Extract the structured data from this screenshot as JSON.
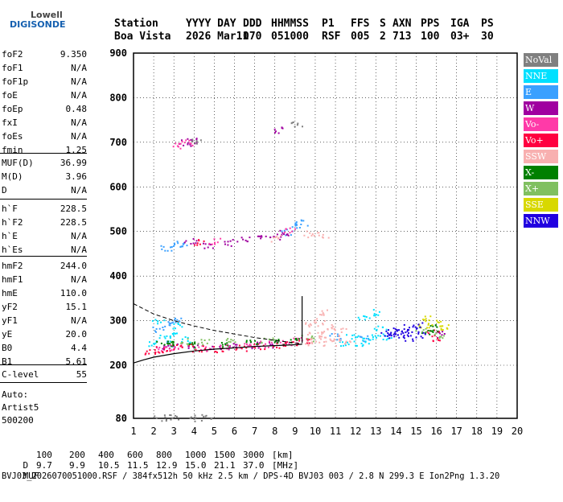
{
  "logo": {
    "line1": "Lowell",
    "line2": "DIGISONDE"
  },
  "header": {
    "columns": [
      {
        "label": "Station",
        "value": "Boa Vista"
      },
      {
        "label": "YYYY DAY",
        "value": "2026 Mar11"
      },
      {
        "label": "DDD",
        "value": "070"
      },
      {
        "label": "HHMMSS",
        "value": "051000"
      },
      {
        "label": "P1",
        "value": "RSF"
      },
      {
        "label": "FFS",
        "value": "005"
      },
      {
        "label": "S",
        "value": "2"
      },
      {
        "label": "AXN",
        "value": "713"
      },
      {
        "label": "PPS",
        "value": "100"
      },
      {
        "label": "IGA",
        "value": "03+"
      },
      {
        "label": "PS",
        "value": "30"
      }
    ]
  },
  "params": {
    "group1": [
      {
        "label": "foF2",
        "value": "9.350"
      },
      {
        "label": "foF1",
        "value": "N/A"
      },
      {
        "label": "foF1p",
        "value": "N/A"
      },
      {
        "label": "foE",
        "value": "N/A"
      },
      {
        "label": "foEp",
        "value": "0.48"
      },
      {
        "label": "fxI",
        "value": "N/A"
      },
      {
        "label": "foEs",
        "value": "N/A"
      },
      {
        "label": "fmin",
        "value": "1.25"
      }
    ],
    "group2": [
      {
        "label": "MUF(D)",
        "value": "36.99"
      },
      {
        "label": "M(D)",
        "value": "3.96"
      },
      {
        "label": "D",
        "value": "N/A"
      }
    ],
    "group3": [
      {
        "label": "h`F",
        "value": "228.5"
      },
      {
        "label": "h`F2",
        "value": "228.5"
      },
      {
        "label": "h`E",
        "value": "N/A"
      },
      {
        "label": "h`Es",
        "value": "N/A"
      }
    ],
    "group4": [
      {
        "label": "hmF2",
        "value": "244.0"
      },
      {
        "label": "hmF1",
        "value": "N/A"
      },
      {
        "label": "hmE",
        "value": "110.0"
      },
      {
        "label": "yF2",
        "value": "15.1"
      },
      {
        "label": "yF1",
        "value": "N/A"
      },
      {
        "label": "yE",
        "value": "20.0"
      },
      {
        "label": "B0",
        "value": "4.4"
      },
      {
        "label": "B1",
        "value": "5.61"
      }
    ],
    "group5": [
      {
        "label": "C-level",
        "value": "55"
      }
    ],
    "footer": {
      "line1": "Auto:",
      "line2": "Artist5",
      "line3": "500200"
    }
  },
  "legend": [
    {
      "label": "NoVal",
      "color": "#808080"
    },
    {
      "label": "NNE",
      "color": "#00e0ff"
    },
    {
      "label": "E",
      "color": "#3aa0ff"
    },
    {
      "label": "W",
      "color": "#a000a0"
    },
    {
      "label": "Vo-",
      "color": "#ff3aa8"
    },
    {
      "label": "Vo+",
      "color": "#ff0040"
    },
    {
      "label": "SSW",
      "color": "#f8b0b0"
    },
    {
      "label": "X-",
      "color": "#008000"
    },
    {
      "label": "X+",
      "color": "#80c060"
    },
    {
      "label": "SSE",
      "color": "#d8d800"
    },
    {
      "label": "NNW",
      "color": "#2000e0"
    }
  ],
  "chart_data": {
    "type": "scatter",
    "title": "",
    "xlabel": "",
    "ylabel": "",
    "xlim": [
      1,
      20
    ],
    "ylim": [
      80,
      900
    ],
    "x_ticks": [
      1,
      2,
      3,
      4,
      5,
      6,
      7,
      8,
      9,
      10,
      11,
      12,
      13,
      14,
      15,
      16,
      17,
      18,
      19,
      20
    ],
    "y_ticks": [
      80,
      200,
      300,
      400,
      500,
      600,
      700,
      800,
      900
    ],
    "grid": "dotted",
    "legend_position": "right",
    "echo_bands": [
      {
        "name": "NNE",
        "points": [
          [
            2.0,
            250
          ],
          [
            2.5,
            262
          ],
          [
            3.0,
            270
          ],
          [
            3.2,
            290
          ],
          [
            2.2,
            300
          ],
          [
            3.5,
            258
          ],
          [
            11.5,
            252
          ],
          [
            12.2,
            250
          ],
          [
            12.6,
            255
          ],
          [
            13.0,
            262
          ],
          [
            13.6,
            265
          ],
          [
            12.4,
            310
          ],
          [
            12.9,
            320
          ],
          [
            11.8,
            268
          ],
          [
            13.2,
            282
          ]
        ]
      },
      {
        "name": "E",
        "points": [
          [
            2.2,
            282
          ],
          [
            2.8,
            292
          ],
          [
            3.1,
            300
          ],
          [
            2.6,
            465
          ],
          [
            3.1,
            470
          ],
          [
            3.4,
            474
          ],
          [
            8.6,
            500
          ],
          [
            9.0,
            512
          ],
          [
            9.3,
            520
          ],
          [
            11.0,
            265
          ],
          [
            12.5,
            262
          ],
          [
            2.9,
            250
          ]
        ]
      },
      {
        "name": "W",
        "points": [
          [
            2.5,
            242
          ],
          [
            3.2,
            245
          ],
          [
            4.0,
            244
          ],
          [
            5.0,
            242
          ],
          [
            6.0,
            244
          ],
          [
            7.0,
            246
          ],
          [
            8.0,
            248
          ],
          [
            3.8,
            478
          ],
          [
            4.6,
            470
          ],
          [
            5.6,
            476
          ],
          [
            6.4,
            483
          ],
          [
            7.4,
            486
          ],
          [
            8.0,
            490
          ],
          [
            8.5,
            498
          ],
          [
            3.5,
            700
          ],
          [
            3.9,
            705
          ],
          [
            8.2,
            728
          ],
          [
            16.2,
            270
          ]
        ]
      },
      {
        "name": "Vo-",
        "points": [
          [
            2.3,
            236
          ],
          [
            3.0,
            242
          ],
          [
            4.5,
            240
          ],
          [
            5.5,
            242
          ],
          [
            6.5,
            245
          ],
          [
            7.5,
            248
          ],
          [
            8.5,
            250
          ],
          [
            9.2,
            258
          ],
          [
            5.0,
            480
          ],
          [
            8.7,
            505
          ],
          [
            3.2,
            694
          ],
          [
            3.6,
            700
          ]
        ]
      },
      {
        "name": "Vo+",
        "points": [
          [
            1.8,
            232
          ],
          [
            2.2,
            236
          ],
          [
            2.8,
            240
          ],
          [
            3.6,
            242
          ],
          [
            4.2,
            238
          ],
          [
            5.2,
            236
          ],
          [
            6.3,
            240
          ],
          [
            7.2,
            242
          ],
          [
            8.2,
            246
          ],
          [
            8.8,
            250
          ],
          [
            9.4,
            255
          ],
          [
            4.2,
            476
          ],
          [
            15.8,
            274
          ],
          [
            16.0,
            262
          ]
        ]
      },
      {
        "name": "SSW",
        "points": [
          [
            9.5,
            250
          ],
          [
            10.0,
            255
          ],
          [
            10.3,
            270
          ],
          [
            10.6,
            285
          ],
          [
            11.0,
            262
          ],
          [
            11.4,
            256
          ],
          [
            10.2,
            300
          ],
          [
            10.5,
            320
          ],
          [
            9.8,
            290
          ],
          [
            11.2,
            278
          ],
          [
            9.9,
            270
          ],
          [
            10.7,
            250
          ],
          [
            8.0,
            485
          ],
          [
            9.7,
            495
          ],
          [
            10.4,
            492
          ]
        ]
      },
      {
        "name": "X-",
        "points": [
          [
            2.4,
            248
          ],
          [
            3.0,
            250
          ],
          [
            3.8,
            248
          ],
          [
            5.6,
            250
          ],
          [
            6.8,
            252
          ],
          [
            8.1,
            254
          ],
          [
            9.0,
            258
          ],
          [
            15.5,
            275
          ],
          [
            15.9,
            285
          ]
        ]
      },
      {
        "name": "X+",
        "points": [
          [
            3.6,
            254
          ],
          [
            4.4,
            252
          ],
          [
            5.8,
            254
          ],
          [
            7.6,
            256
          ],
          [
            9.6,
            262
          ],
          [
            15.2,
            282
          ],
          [
            16.1,
            266
          ]
        ]
      },
      {
        "name": "SSE",
        "points": [
          [
            15.4,
            290
          ],
          [
            16.0,
            296
          ],
          [
            15.6,
            305
          ],
          [
            16.3,
            285
          ]
        ]
      },
      {
        "name": "NNW",
        "points": [
          [
            13.5,
            268
          ],
          [
            14.0,
            270
          ],
          [
            14.3,
            275
          ],
          [
            14.8,
            280
          ],
          [
            14.1,
            285
          ],
          [
            15.2,
            270
          ],
          [
            13.8,
            275
          ],
          [
            14.6,
            262
          ],
          [
            15.0,
            290
          ]
        ]
      },
      {
        "name": "NoVal",
        "points": [
          [
            2.3,
            82
          ],
          [
            3.0,
            82
          ],
          [
            3.9,
            82
          ],
          [
            4.6,
            83
          ],
          [
            9.1,
            740
          ],
          [
            4.1,
            705
          ]
        ]
      }
    ],
    "profile_curve": [
      [
        1,
        205
      ],
      [
        1.5,
        212
      ],
      [
        2,
        218
      ],
      [
        3,
        226
      ],
      [
        4,
        232
      ],
      [
        5,
        236
      ],
      [
        6,
        239
      ],
      [
        7,
        242
      ],
      [
        8,
        244
      ],
      [
        9,
        246
      ],
      [
        9.35,
        247
      ]
    ],
    "profile_dashed": [
      [
        1,
        338
      ],
      [
        2,
        315
      ],
      [
        3,
        300
      ],
      [
        4,
        288
      ],
      [
        5,
        278
      ],
      [
        6,
        270
      ],
      [
        7,
        262
      ],
      [
        8,
        256
      ],
      [
        9,
        250
      ],
      [
        9.35,
        248
      ]
    ],
    "critical_freq_line": {
      "x": 9.35,
      "y_from": 250,
      "y_to": 355
    }
  },
  "bottom": {
    "d_label": "D",
    "d_values": [
      "100",
      "200",
      "400",
      "600",
      "800",
      "1000",
      "1500",
      "3000",
      "[km]"
    ],
    "muf_label": "MUF",
    "muf_values": [
      "9.7",
      "9.9",
      "10.5",
      "11.5",
      "12.9",
      "15.0",
      "21.1",
      "37.0",
      "[MHz]"
    ],
    "file_line": "BVJ03_2026070051000.RSF / 384fx512h 50 kHz 2.5 km / DPS-4D BVJ03 003 / 2.8 N 299.3 E Ion2Png 1.3.20"
  }
}
